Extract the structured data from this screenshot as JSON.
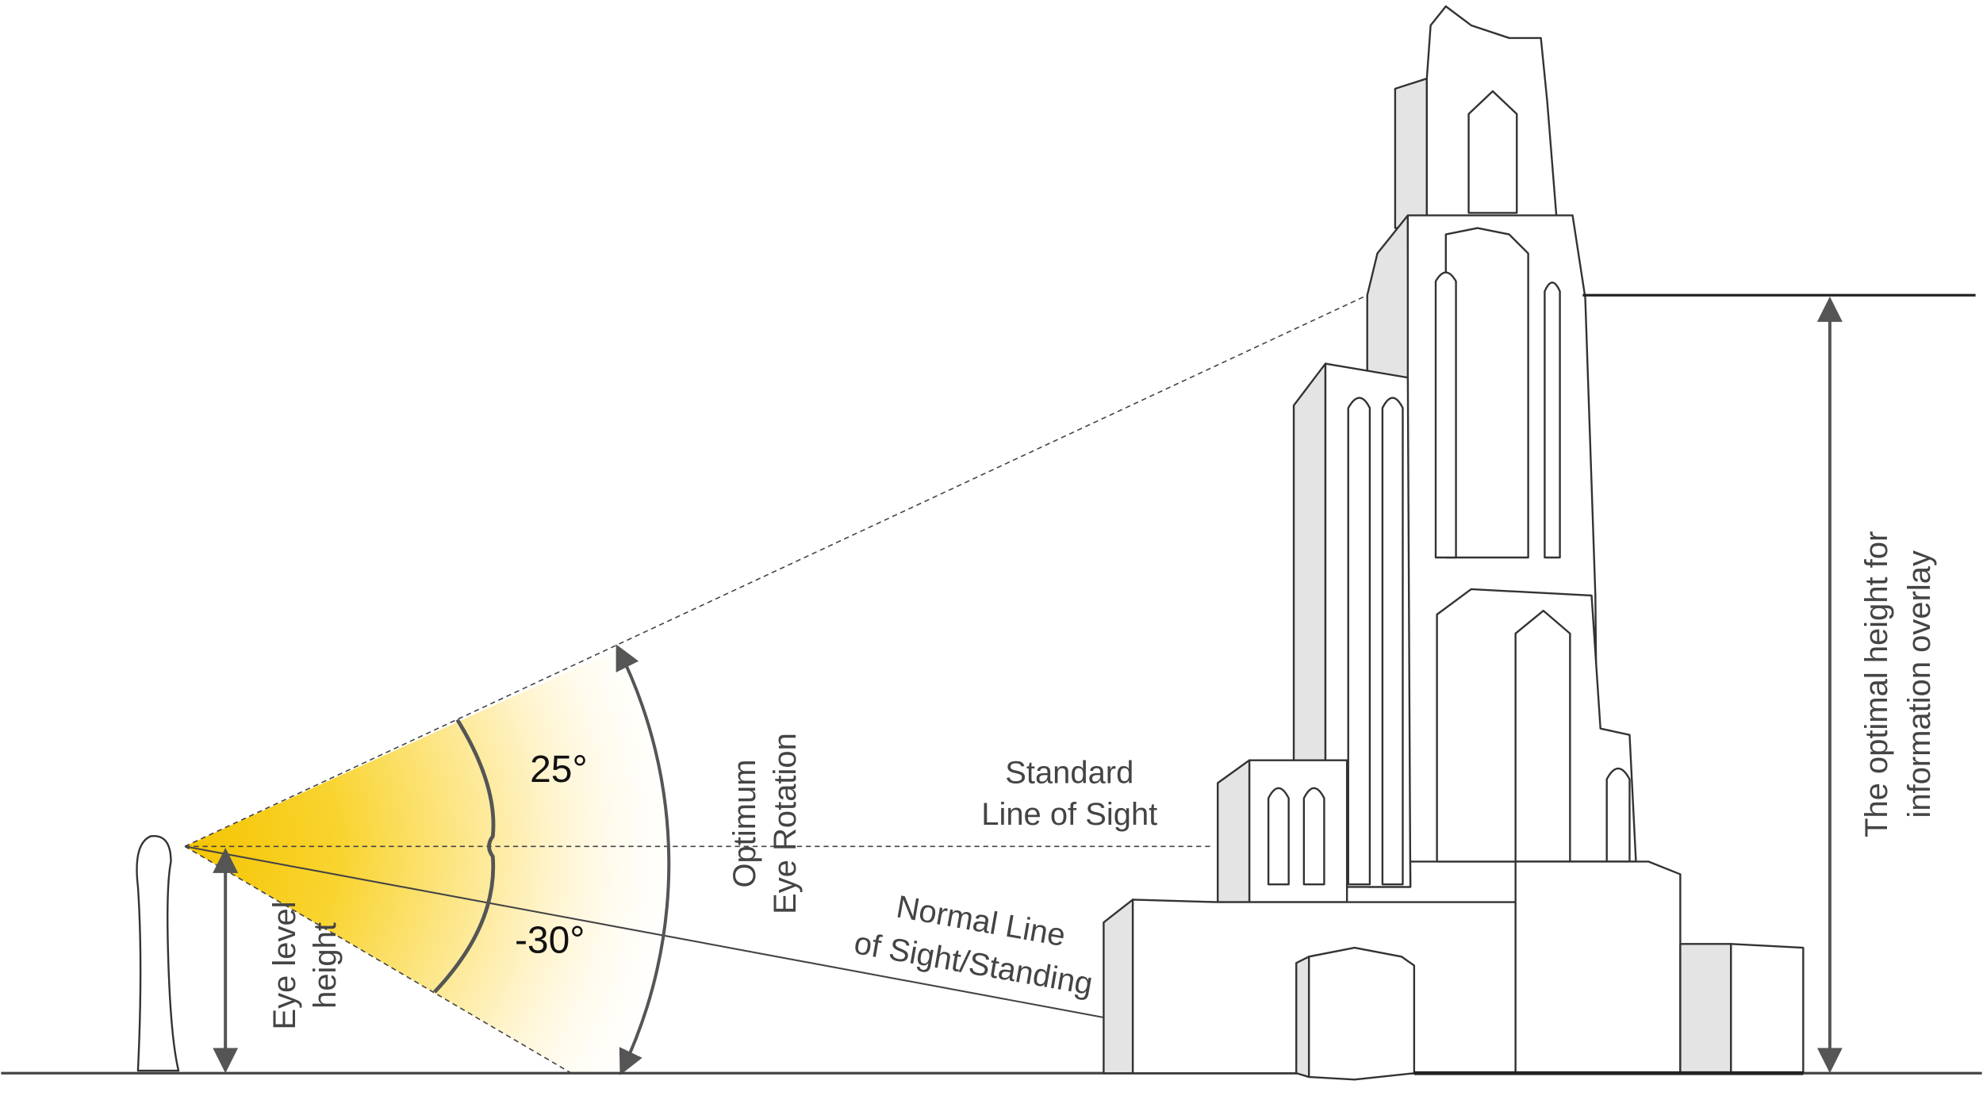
{
  "angles": {
    "upper": "25°",
    "lower": "-30°"
  },
  "labels": {
    "optimum_rotation": [
      "Optimum",
      "Eye Rotation"
    ],
    "standard_line": [
      "Standard",
      "Line of Sight"
    ],
    "normal_line": [
      "Normal Line",
      "of Sight/Standing"
    ],
    "eye_level": [
      "Eye level",
      "height"
    ],
    "overlay_height": [
      "The optimal height for",
      "information overlay"
    ]
  }
}
